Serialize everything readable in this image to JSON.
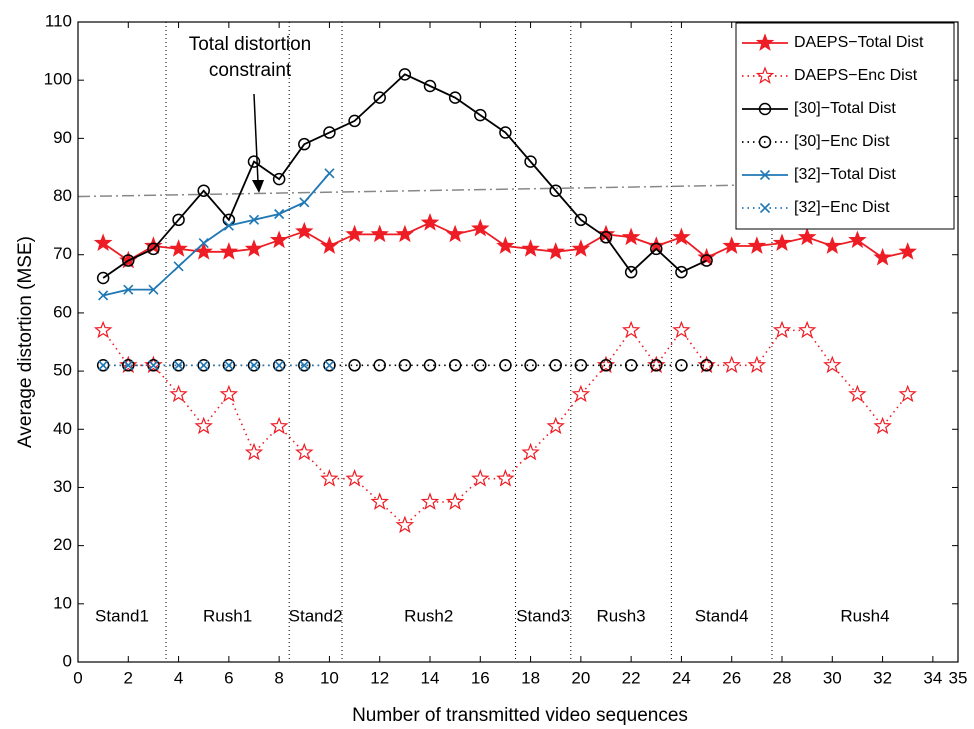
{
  "chart_data": {
    "type": "line",
    "xlabel": "Number of transmitted video sequences",
    "ylabel": "Average distortion (MSE)",
    "annotation": "Total distortion constraint",
    "xlim": [
      0,
      35
    ],
    "ylim": [
      0,
      110
    ],
    "xticks": [
      0,
      2,
      4,
      6,
      8,
      10,
      12,
      14,
      16,
      18,
      20,
      22,
      24,
      26,
      28,
      30,
      32,
      34,
      35
    ],
    "yticks": [
      0,
      10,
      20,
      30,
      40,
      50,
      60,
      70,
      80,
      90,
      100,
      110
    ],
    "legend": "upper right",
    "series": [
      {
        "name": "DAEPS−Total Dist",
        "color": "#ee1c24",
        "linestyle": "solid",
        "marker": "star",
        "filled": true,
        "x": [
          1,
          2,
          3,
          4,
          5,
          6,
          7,
          8,
          9,
          10,
          11,
          12,
          13,
          14,
          15,
          16,
          17,
          18,
          19,
          20,
          21,
          22,
          23,
          24,
          25,
          26,
          27,
          28,
          29,
          30,
          31,
          32,
          33
        ],
        "values": [
          72,
          69,
          71.5,
          71,
          70.5,
          70.5,
          71,
          72.5,
          74,
          71.5,
          73.5,
          73.5,
          73.5,
          75.5,
          73.5,
          74.5,
          71.5,
          71,
          70.5,
          71,
          73.5,
          73,
          71.5,
          73,
          69.5,
          71.5,
          71.5,
          72,
          73,
          71.5,
          72.5,
          69.5,
          70.5
        ]
      },
      {
        "name": "DAEPS−Enc Dist",
        "color": "#ee1c24",
        "linestyle": "dotted",
        "marker": "star",
        "filled": false,
        "x": [
          1,
          2,
          3,
          4,
          5,
          6,
          7,
          8,
          9,
          10,
          11,
          12,
          13,
          14,
          15,
          16,
          17,
          18,
          19,
          20,
          21,
          22,
          23,
          24,
          25,
          26,
          27,
          28,
          29,
          30,
          31,
          32,
          33
        ],
        "values": [
          57,
          51,
          51,
          46,
          40.5,
          46,
          36,
          40.5,
          36,
          31.5,
          31.5,
          27.5,
          23.5,
          27.5,
          27.5,
          31.5,
          31.5,
          36,
          40.5,
          46,
          51,
          57,
          51,
          57,
          51,
          51,
          51,
          57,
          57,
          51,
          46,
          40.5,
          46
        ]
      },
      {
        "name": "[30]−Total Dist",
        "color": "#000000",
        "linestyle": "solid",
        "marker": "circle",
        "filled": false,
        "x": [
          1,
          2,
          3,
          4,
          5,
          6,
          7,
          8,
          9,
          10,
          11,
          12,
          13,
          14,
          15,
          16,
          17,
          18,
          19,
          20,
          21,
          22,
          23,
          24,
          25
        ],
        "values": [
          66,
          69,
          71,
          76,
          81,
          76,
          86,
          83,
          89,
          91,
          93,
          97,
          101,
          99,
          97,
          94,
          91,
          86,
          81,
          76,
          73,
          67,
          71,
          67,
          69
        ]
      },
      {
        "name": "[30]−Enc Dist",
        "color": "#000000",
        "linestyle": "dotted",
        "marker": "circle",
        "filled": false,
        "x": [
          1,
          2,
          3,
          4,
          5,
          6,
          7,
          8,
          9,
          10,
          11,
          12,
          13,
          14,
          15,
          16,
          17,
          18,
          19,
          20,
          21,
          22,
          23,
          24,
          25
        ],
        "values": [
          51,
          51,
          51,
          51,
          51,
          51,
          51,
          51,
          51,
          51,
          51,
          51,
          51,
          51,
          51,
          51,
          51,
          51,
          51,
          51,
          51,
          51,
          51,
          51,
          51
        ]
      },
      {
        "name": "[32]−Total Dist",
        "color": "#1f77b4",
        "linestyle": "solid",
        "marker": "x",
        "filled": false,
        "x": [
          1,
          2,
          3,
          4,
          5,
          6,
          7,
          8,
          9,
          10
        ],
        "values": [
          63,
          64,
          64,
          68,
          72,
          75,
          76,
          77,
          79,
          84
        ]
      },
      {
        "name": "[32]−Enc Dist",
        "color": "#1f77b4",
        "linestyle": "dotted",
        "marker": "x",
        "filled": false,
        "x": [
          1,
          2,
          3,
          4,
          5,
          6,
          7,
          8,
          9,
          10
        ],
        "values": [
          51,
          51,
          51,
          51,
          51,
          51,
          51,
          51,
          51,
          51
        ]
      }
    ],
    "constraint_line": {
      "color": "#888888",
      "x": [
        0,
        35
      ],
      "values": [
        80,
        82.6
      ]
    },
    "dividers": [
      3.5,
      8.4,
      10.5,
      17.4,
      19.6,
      23.6,
      27.6
    ],
    "phases": [
      {
        "label": "Stand1",
        "color": "#000000"
      },
      {
        "label": "Rush1",
        "color": "#1a8a1a"
      },
      {
        "label": "Stand2",
        "color": "#000000"
      },
      {
        "label": "Rush2",
        "color": "#1a8a1a"
      },
      {
        "label": "Stand3",
        "color": "#000000"
      },
      {
        "label": "Rush3",
        "color": "#1a8a1a"
      },
      {
        "label": "Stand4",
        "color": "#000000"
      },
      {
        "label": "Rush4",
        "color": "#1a8a1a"
      }
    ]
  }
}
